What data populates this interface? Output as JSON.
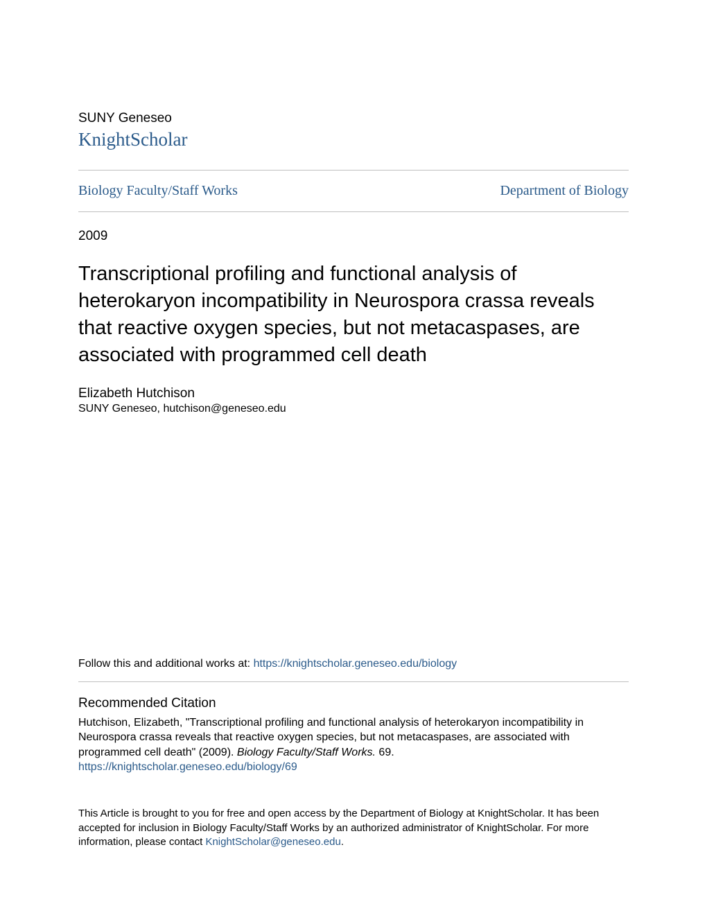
{
  "header": {
    "institution": "SUNY Geneseo",
    "repository": "KnightScholar"
  },
  "breadcrumb": {
    "left": "Biology Faculty/Staff Works",
    "right": "Department of Biology"
  },
  "year": "2009",
  "title": "Transcriptional profiling and functional analysis of heterokaryon incompatibility in Neurospora crassa reveals that reactive oxygen species, but not metacaspases, are associated with programmed cell death",
  "author": {
    "name": "Elizabeth Hutchison",
    "affiliation": "SUNY Geneseo, hutchison@geneseo.edu"
  },
  "follow": {
    "prefix": "Follow this and additional works at: ",
    "link": "https://knightscholar.geneseo.edu/biology"
  },
  "recommended": {
    "heading": "Recommended Citation",
    "text_before_italic": "Hutchison, Elizabeth, \"Transcriptional profiling and functional analysis of heterokaryon incompatibility in Neurospora crassa reveals that reactive oxygen species, but not metacaspases, are associated with programmed cell death\" (2009). ",
    "italic": "Biology Faculty/Staff Works.",
    "text_after_italic": " 69.",
    "link": "https://knightscholar.geneseo.edu/biology/69"
  },
  "footer": {
    "text_before_link": "This Article is brought to you for free and open access by the Department of Biology at KnightScholar. It has been accepted for inclusion in Biology Faculty/Staff Works by an authorized administrator of KnightScholar. For more information, please contact ",
    "link": "KnightScholar@geneseo.edu",
    "text_after_link": "."
  },
  "colors": {
    "link": "#2a5a8a",
    "text": "#000000",
    "divider": "#bfbfbf",
    "background": "#ffffff"
  }
}
